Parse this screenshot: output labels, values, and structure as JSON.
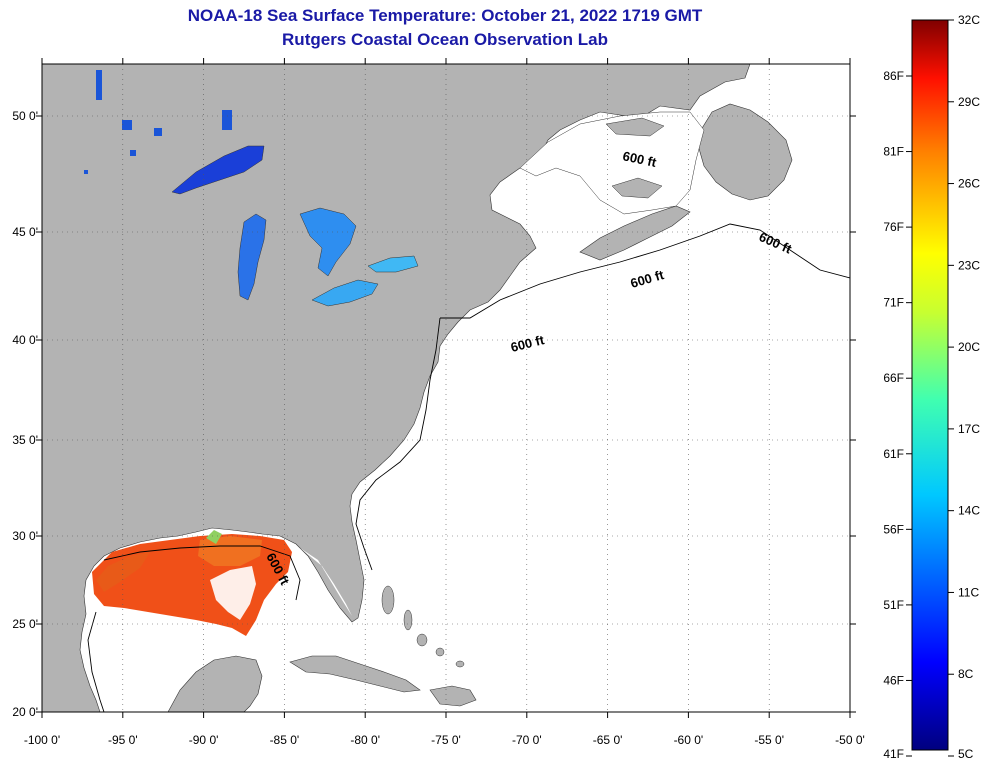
{
  "title": "NOAA-18 Sea Surface Temperature:  October 21, 2022 1719 GMT",
  "subtitle": "Rutgers Coastal Ocean Observation Lab",
  "lon_labels": [
    "-100 0'",
    "-95 0'",
    "-90 0'",
    "-85 0'",
    "-80 0'",
    "-75 0'",
    "-70 0'",
    "-65 0'",
    "-60 0'",
    "-55 0'",
    "-50 0'"
  ],
  "lat_labels": [
    "20 0'",
    "25 0'",
    "30 0'",
    "35 0'",
    "40 0'",
    "45 0'",
    "50 0'"
  ],
  "isobath_label": "600 ft",
  "colorbar": {
    "celsius": [
      "32C",
      "29C",
      "26C",
      "23C",
      "20C",
      "17C",
      "14C",
      "11C",
      "8C",
      "5C"
    ],
    "fahrenheit": [
      "86F",
      "81F",
      "76F",
      "71F",
      "66F",
      "61F",
      "56F",
      "51F",
      "46F",
      "41F"
    ]
  },
  "colors": {
    "land": "#b3b3b3",
    "water": "#ffffff",
    "title": "#1a1aa6",
    "sst_gulf": "#f05018",
    "sst_lakes": "#2a6ee8"
  }
}
